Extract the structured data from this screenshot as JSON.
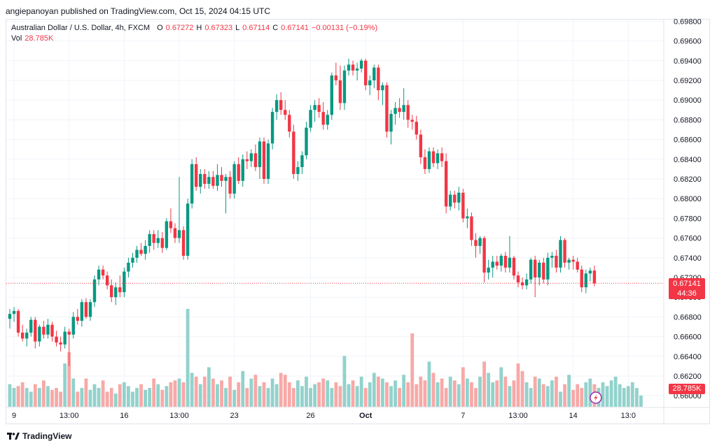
{
  "header": {
    "publisher": "angiepanoyan published on TradingView.com, Oct 15, 2024 04:15 UTC"
  },
  "legend": {
    "symbol": "Australian Dollar / U.S. Dollar, 4h, FXCM",
    "o_label": "O",
    "o_value": "0.67272",
    "h_label": "H",
    "h_value": "0.67323",
    "l_label": "L",
    "l_value": "0.67114",
    "c_label": "C",
    "c_value": "0.67141",
    "change": "−0.00131 (−0.19%)",
    "vol_label": "Vol",
    "vol_value": "28.785K"
  },
  "last_price": {
    "price": "0.67141",
    "countdown": "44:36"
  },
  "volume_tag": "28.785K",
  "footer": {
    "brand": "TradingView"
  },
  "colors": {
    "up": "#089981",
    "down": "#f23645",
    "up_vol": "#92d2cc",
    "down_vol": "#f7a9a7",
    "grid": "#f0f3fa",
    "text": "#131722"
  },
  "chart_data": {
    "type": "candlestick",
    "y_ticks": [
      "0.69800",
      "0.69600",
      "0.69400",
      "0.69200",
      "0.69000",
      "0.68800",
      "0.68600",
      "0.68400",
      "0.68200",
      "0.68000",
      "0.67800",
      "0.67600",
      "0.67400",
      "0.67200",
      "0.67000",
      "0.66800",
      "0.66600",
      "0.66400",
      "0.66200",
      "0.66000"
    ],
    "ylim": [
      0.6598,
      0.6981
    ],
    "x_ticks": [
      {
        "label": "9",
        "index": 1
      },
      {
        "label": "13:00",
        "index": 14
      },
      {
        "label": "16",
        "index": 27
      },
      {
        "label": "13:00",
        "index": 40
      },
      {
        "label": "23",
        "index": 53
      },
      {
        "label": "26",
        "index": 71
      },
      {
        "label": "Oct",
        "index": 84
      },
      {
        "label": "7",
        "index": 107
      },
      {
        "label": "13:00",
        "index": 120
      },
      {
        "label": "14",
        "index": 133
      },
      {
        "label": "13:0",
        "index": 146
      }
    ],
    "series": [
      {
        "o": 0.6678,
        "h": 0.6688,
        "l": 0.6668,
        "c": 0.6683
      },
      {
        "o": 0.6683,
        "h": 0.669,
        "l": 0.6675,
        "c": 0.6686
      },
      {
        "o": 0.6686,
        "h": 0.6688,
        "l": 0.666,
        "c": 0.6664
      },
      {
        "o": 0.6664,
        "h": 0.6672,
        "l": 0.6655,
        "c": 0.6658
      },
      {
        "o": 0.6658,
        "h": 0.6668,
        "l": 0.665,
        "c": 0.6664
      },
      {
        "o": 0.6664,
        "h": 0.668,
        "l": 0.666,
        "c": 0.6677
      },
      {
        "o": 0.6677,
        "h": 0.668,
        "l": 0.6648,
        "c": 0.6655
      },
      {
        "o": 0.6655,
        "h": 0.6672,
        "l": 0.665,
        "c": 0.667
      },
      {
        "o": 0.667,
        "h": 0.6676,
        "l": 0.6658,
        "c": 0.6662
      },
      {
        "o": 0.6662,
        "h": 0.6678,
        "l": 0.6658,
        "c": 0.6672
      },
      {
        "o": 0.6672,
        "h": 0.6675,
        "l": 0.6655,
        "c": 0.666
      },
      {
        "o": 0.666,
        "h": 0.6666,
        "l": 0.665,
        "c": 0.6654
      },
      {
        "o": 0.6654,
        "h": 0.666,
        "l": 0.6645,
        "c": 0.6652
      },
      {
        "o": 0.6652,
        "h": 0.667,
        "l": 0.6648,
        "c": 0.6665
      },
      {
        "o": 0.6665,
        "h": 0.6668,
        "l": 0.663,
        "c": 0.6662
      },
      {
        "o": 0.6662,
        "h": 0.6685,
        "l": 0.6658,
        "c": 0.668
      },
      {
        "o": 0.668,
        "h": 0.6688,
        "l": 0.6672,
        "c": 0.6676
      },
      {
        "o": 0.6676,
        "h": 0.6698,
        "l": 0.667,
        "c": 0.6695
      },
      {
        "o": 0.6695,
        "h": 0.6699,
        "l": 0.6678,
        "c": 0.668
      },
      {
        "o": 0.668,
        "h": 0.6698,
        "l": 0.6676,
        "c": 0.6695
      },
      {
        "o": 0.6695,
        "h": 0.6722,
        "l": 0.669,
        "c": 0.6718
      },
      {
        "o": 0.6718,
        "h": 0.6732,
        "l": 0.6712,
        "c": 0.6728
      },
      {
        "o": 0.6728,
        "h": 0.6732,
        "l": 0.6718,
        "c": 0.6722
      },
      {
        "o": 0.6722,
        "h": 0.6726,
        "l": 0.6708,
        "c": 0.6712
      },
      {
        "o": 0.6712,
        "h": 0.6718,
        "l": 0.6695,
        "c": 0.67
      },
      {
        "o": 0.67,
        "h": 0.6715,
        "l": 0.6692,
        "c": 0.671
      },
      {
        "o": 0.671,
        "h": 0.6722,
        "l": 0.67,
        "c": 0.6705
      },
      {
        "o": 0.6705,
        "h": 0.673,
        "l": 0.67,
        "c": 0.6726
      },
      {
        "o": 0.6726,
        "h": 0.674,
        "l": 0.672,
        "c": 0.6735
      },
      {
        "o": 0.6735,
        "h": 0.6745,
        "l": 0.673,
        "c": 0.674
      },
      {
        "o": 0.674,
        "h": 0.6752,
        "l": 0.6735,
        "c": 0.6748
      },
      {
        "o": 0.6748,
        "h": 0.6755,
        "l": 0.6742,
        "c": 0.6744
      },
      {
        "o": 0.6744,
        "h": 0.6758,
        "l": 0.6738,
        "c": 0.6752
      },
      {
        "o": 0.6752,
        "h": 0.6768,
        "l": 0.6745,
        "c": 0.6764
      },
      {
        "o": 0.6764,
        "h": 0.6768,
        "l": 0.6748,
        "c": 0.6755
      },
      {
        "o": 0.6755,
        "h": 0.6768,
        "l": 0.675,
        "c": 0.676
      },
      {
        "o": 0.676,
        "h": 0.6766,
        "l": 0.6745,
        "c": 0.675
      },
      {
        "o": 0.675,
        "h": 0.678,
        "l": 0.6748,
        "c": 0.6777
      },
      {
        "o": 0.6777,
        "h": 0.679,
        "l": 0.6765,
        "c": 0.677
      },
      {
        "o": 0.677,
        "h": 0.6775,
        "l": 0.6755,
        "c": 0.676
      },
      {
        "o": 0.676,
        "h": 0.6822,
        "l": 0.6755,
        "c": 0.6768
      },
      {
        "o": 0.6768,
        "h": 0.6772,
        "l": 0.6738,
        "c": 0.6742
      },
      {
        "o": 0.6742,
        "h": 0.68,
        "l": 0.6738,
        "c": 0.6795
      },
      {
        "o": 0.6795,
        "h": 0.684,
        "l": 0.679,
        "c": 0.6835
      },
      {
        "o": 0.6835,
        "h": 0.6842,
        "l": 0.6808,
        "c": 0.6812
      },
      {
        "o": 0.6812,
        "h": 0.683,
        "l": 0.6805,
        "c": 0.6825
      },
      {
        "o": 0.6825,
        "h": 0.683,
        "l": 0.681,
        "c": 0.6815
      },
      {
        "o": 0.6815,
        "h": 0.6828,
        "l": 0.681,
        "c": 0.6822
      },
      {
        "o": 0.6822,
        "h": 0.6828,
        "l": 0.681,
        "c": 0.6813
      },
      {
        "o": 0.6813,
        "h": 0.6835,
        "l": 0.6808,
        "c": 0.6824
      },
      {
        "o": 0.6824,
        "h": 0.6832,
        "l": 0.6812,
        "c": 0.6818
      },
      {
        "o": 0.6818,
        "h": 0.6825,
        "l": 0.6785,
        "c": 0.6822
      },
      {
        "o": 0.6822,
        "h": 0.6828,
        "l": 0.68,
        "c": 0.6805
      },
      {
        "o": 0.6805,
        "h": 0.6838,
        "l": 0.68,
        "c": 0.6835
      },
      {
        "o": 0.6835,
        "h": 0.6842,
        "l": 0.6815,
        "c": 0.6818
      },
      {
        "o": 0.6818,
        "h": 0.6845,
        "l": 0.6812,
        "c": 0.684
      },
      {
        "o": 0.684,
        "h": 0.6848,
        "l": 0.683,
        "c": 0.6838
      },
      {
        "o": 0.6838,
        "h": 0.685,
        "l": 0.6832,
        "c": 0.6846
      },
      {
        "o": 0.6846,
        "h": 0.6855,
        "l": 0.6828,
        "c": 0.6832
      },
      {
        "o": 0.6832,
        "h": 0.6862,
        "l": 0.682,
        "c": 0.6858
      },
      {
        "o": 0.6858,
        "h": 0.6862,
        "l": 0.6815,
        "c": 0.682
      },
      {
        "o": 0.682,
        "h": 0.686,
        "l": 0.6815,
        "c": 0.6856
      },
      {
        "o": 0.6856,
        "h": 0.6892,
        "l": 0.685,
        "c": 0.6888
      },
      {
        "o": 0.6888,
        "h": 0.6906,
        "l": 0.688,
        "c": 0.69
      },
      {
        "o": 0.69,
        "h": 0.6908,
        "l": 0.6885,
        "c": 0.689
      },
      {
        "o": 0.689,
        "h": 0.69,
        "l": 0.688,
        "c": 0.6885
      },
      {
        "o": 0.6885,
        "h": 0.689,
        "l": 0.6862,
        "c": 0.6868
      },
      {
        "o": 0.6868,
        "h": 0.6875,
        "l": 0.682,
        "c": 0.6825
      },
      {
        "o": 0.6825,
        "h": 0.6838,
        "l": 0.6818,
        "c": 0.6832
      },
      {
        "o": 0.6832,
        "h": 0.6848,
        "l": 0.6825,
        "c": 0.6844
      },
      {
        "o": 0.6844,
        "h": 0.6878,
        "l": 0.684,
        "c": 0.6872
      },
      {
        "o": 0.6872,
        "h": 0.6895,
        "l": 0.6868,
        "c": 0.689
      },
      {
        "o": 0.689,
        "h": 0.69,
        "l": 0.6878,
        "c": 0.6895
      },
      {
        "o": 0.6895,
        "h": 0.6902,
        "l": 0.6882,
        "c": 0.6888
      },
      {
        "o": 0.6888,
        "h": 0.6898,
        "l": 0.687,
        "c": 0.6875
      },
      {
        "o": 0.6875,
        "h": 0.689,
        "l": 0.687,
        "c": 0.6885
      },
      {
        "o": 0.6885,
        "h": 0.6928,
        "l": 0.688,
        "c": 0.6925
      },
      {
        "o": 0.6925,
        "h": 0.6938,
        "l": 0.6915,
        "c": 0.692
      },
      {
        "o": 0.692,
        "h": 0.6935,
        "l": 0.689,
        "c": 0.6897
      },
      {
        "o": 0.6897,
        "h": 0.6935,
        "l": 0.689,
        "c": 0.693
      },
      {
        "o": 0.693,
        "h": 0.6942,
        "l": 0.6925,
        "c": 0.6936
      },
      {
        "o": 0.6936,
        "h": 0.694,
        "l": 0.6925,
        "c": 0.693
      },
      {
        "o": 0.693,
        "h": 0.6938,
        "l": 0.692,
        "c": 0.6932
      },
      {
        "o": 0.6932,
        "h": 0.6942,
        "l": 0.6928,
        "c": 0.694
      },
      {
        "o": 0.694,
        "h": 0.6942,
        "l": 0.691,
        "c": 0.6915
      },
      {
        "o": 0.6915,
        "h": 0.6925,
        "l": 0.6905,
        "c": 0.692
      },
      {
        "o": 0.692,
        "h": 0.6936,
        "l": 0.6912,
        "c": 0.6933
      },
      {
        "o": 0.6933,
        "h": 0.6936,
        "l": 0.69,
        "c": 0.691
      },
      {
        "o": 0.691,
        "h": 0.6918,
        "l": 0.6895,
        "c": 0.6915
      },
      {
        "o": 0.6915,
        "h": 0.6918,
        "l": 0.6862,
        "c": 0.6868
      },
      {
        "o": 0.6868,
        "h": 0.689,
        "l": 0.6855,
        "c": 0.6886
      },
      {
        "o": 0.6886,
        "h": 0.6898,
        "l": 0.6875,
        "c": 0.6892
      },
      {
        "o": 0.6892,
        "h": 0.6902,
        "l": 0.6882,
        "c": 0.6888
      },
      {
        "o": 0.6888,
        "h": 0.6912,
        "l": 0.688,
        "c": 0.6895
      },
      {
        "o": 0.6895,
        "h": 0.69,
        "l": 0.6872,
        "c": 0.688
      },
      {
        "o": 0.688,
        "h": 0.6885,
        "l": 0.687,
        "c": 0.6878
      },
      {
        "o": 0.6878,
        "h": 0.6884,
        "l": 0.686,
        "c": 0.6865
      },
      {
        "o": 0.6865,
        "h": 0.687,
        "l": 0.6835,
        "c": 0.6842
      },
      {
        "o": 0.6842,
        "h": 0.685,
        "l": 0.6825,
        "c": 0.683
      },
      {
        "o": 0.683,
        "h": 0.6852,
        "l": 0.6826,
        "c": 0.6848
      },
      {
        "o": 0.6848,
        "h": 0.6852,
        "l": 0.6832,
        "c": 0.6836
      },
      {
        "o": 0.6836,
        "h": 0.685,
        "l": 0.683,
        "c": 0.6846
      },
      {
        "o": 0.6846,
        "h": 0.6852,
        "l": 0.6832,
        "c": 0.6838
      },
      {
        "o": 0.6838,
        "h": 0.6846,
        "l": 0.6785,
        "c": 0.6792
      },
      {
        "o": 0.6792,
        "h": 0.6808,
        "l": 0.6788,
        "c": 0.6804
      },
      {
        "o": 0.6804,
        "h": 0.6808,
        "l": 0.679,
        "c": 0.6796
      },
      {
        "o": 0.6796,
        "h": 0.6812,
        "l": 0.6788,
        "c": 0.6806
      },
      {
        "o": 0.6806,
        "h": 0.681,
        "l": 0.6776,
        "c": 0.678
      },
      {
        "o": 0.678,
        "h": 0.679,
        "l": 0.677,
        "c": 0.6782
      },
      {
        "o": 0.6782,
        "h": 0.6786,
        "l": 0.6752,
        "c": 0.6758
      },
      {
        "o": 0.6758,
        "h": 0.6765,
        "l": 0.674,
        "c": 0.6752
      },
      {
        "o": 0.6752,
        "h": 0.6762,
        "l": 0.6744,
        "c": 0.676
      },
      {
        "o": 0.676,
        "h": 0.6762,
        "l": 0.6715,
        "c": 0.6725
      },
      {
        "o": 0.6725,
        "h": 0.6738,
        "l": 0.6718,
        "c": 0.673
      },
      {
        "o": 0.673,
        "h": 0.6742,
        "l": 0.672,
        "c": 0.6736
      },
      {
        "o": 0.6736,
        "h": 0.6742,
        "l": 0.6728,
        "c": 0.6732
      },
      {
        "o": 0.6732,
        "h": 0.6744,
        "l": 0.6726,
        "c": 0.6742
      },
      {
        "o": 0.6742,
        "h": 0.6746,
        "l": 0.6725,
        "c": 0.673
      },
      {
        "o": 0.673,
        "h": 0.6762,
        "l": 0.6725,
        "c": 0.674
      },
      {
        "o": 0.674,
        "h": 0.6742,
        "l": 0.6718,
        "c": 0.6722
      },
      {
        "o": 0.6722,
        "h": 0.6726,
        "l": 0.671,
        "c": 0.6715
      },
      {
        "o": 0.6715,
        "h": 0.672,
        "l": 0.6708,
        "c": 0.6712
      },
      {
        "o": 0.6712,
        "h": 0.6724,
        "l": 0.6708,
        "c": 0.6718
      },
      {
        "o": 0.6718,
        "h": 0.674,
        "l": 0.6714,
        "c": 0.6738
      },
      {
        "o": 0.6738,
        "h": 0.6742,
        "l": 0.67,
        "c": 0.672
      },
      {
        "o": 0.672,
        "h": 0.6738,
        "l": 0.6712,
        "c": 0.6735
      },
      {
        "o": 0.6735,
        "h": 0.674,
        "l": 0.6714,
        "c": 0.6718
      },
      {
        "o": 0.6718,
        "h": 0.6745,
        "l": 0.6712,
        "c": 0.674
      },
      {
        "o": 0.674,
        "h": 0.6746,
        "l": 0.673,
        "c": 0.6742
      },
      {
        "o": 0.6742,
        "h": 0.6748,
        "l": 0.6725,
        "c": 0.673
      },
      {
        "o": 0.673,
        "h": 0.6762,
        "l": 0.6725,
        "c": 0.6758
      },
      {
        "o": 0.6758,
        "h": 0.676,
        "l": 0.673,
        "c": 0.6735
      },
      {
        "o": 0.6735,
        "h": 0.674,
        "l": 0.6728,
        "c": 0.6738
      },
      {
        "o": 0.6738,
        "h": 0.6742,
        "l": 0.6728,
        "c": 0.6736
      },
      {
        "o": 0.6736,
        "h": 0.674,
        "l": 0.6725,
        "c": 0.6728
      },
      {
        "o": 0.6728,
        "h": 0.6732,
        "l": 0.6705,
        "c": 0.671
      },
      {
        "o": 0.671,
        "h": 0.6728,
        "l": 0.6704,
        "c": 0.6724
      },
      {
        "o": 0.6724,
        "h": 0.673,
        "l": 0.6716,
        "c": 0.6727
      },
      {
        "o": 0.6727,
        "h": 0.6732,
        "l": 0.6711,
        "c": 0.6714
      }
    ],
    "volume": [
      1.2,
      1.0,
      1.1,
      1.3,
      1.0,
      0.8,
      1.2,
      1.0,
      1.4,
      1.1,
      0.9,
      1.0,
      0.8,
      2.3,
      2.9,
      1.5,
      0.8,
      1.0,
      1.5,
      0.9,
      1.2,
      1.0,
      1.4,
      0.8,
      1.0,
      0.7,
      1.2,
      1.3,
      1.1,
      0.8,
      1.0,
      1.2,
      0.9,
      1.0,
      1.5,
      1.2,
      0.9,
      1.1,
      1.3,
      1.4,
      1.5,
      1.3,
      5.2,
      1.8,
      1.6,
      1.2,
      1.6,
      2.1,
      1.5,
      1.2,
      1.4,
      1.0,
      1.6,
      0.9,
      1.3,
      1.9,
      1.0,
      1.5,
      1.7,
      1.1,
      1.3,
      1.0,
      1.5,
      1.2,
      1.8,
      1.7,
      1.3,
      1.0,
      1.4,
      1.1,
      1.6,
      1.0,
      1.2,
      1.3,
      1.5,
      1.4,
      1.0,
      1.3,
      1.1,
      2.7,
      1.2,
      1.4,
      1.1,
      1.6,
      1.0,
      1.3,
      1.8,
      1.6,
      1.5,
      1.3,
      1.1,
      1.4,
      1.0,
      1.7,
      1.3,
      3.9,
      1.2,
      1.6,
      1.4,
      2.4,
      1.8,
      1.3,
      1.5,
      1.0,
      1.6,
      1.4,
      1.2,
      2.1,
      1.5,
      1.3,
      1.0,
      1.6,
      2.4,
      1.8,
      1.3,
      1.4,
      2.1,
      1.6,
      1.1,
      1.4,
      2.3,
      1.9,
      1.3,
      1.0,
      1.6,
      1.5,
      1.2,
      1.1,
      1.4,
      1.6,
      0.8,
      1.2,
      1.7,
      0.9,
      1.2,
      1.0,
      1.3,
      1.5,
      1.2,
      1.0,
      1.3,
      1.1,
      1.4,
      1.6,
      1.2,
      1.0,
      1.1,
      1.3,
      1.0,
      0.6
    ],
    "last_close": 0.67141
  }
}
